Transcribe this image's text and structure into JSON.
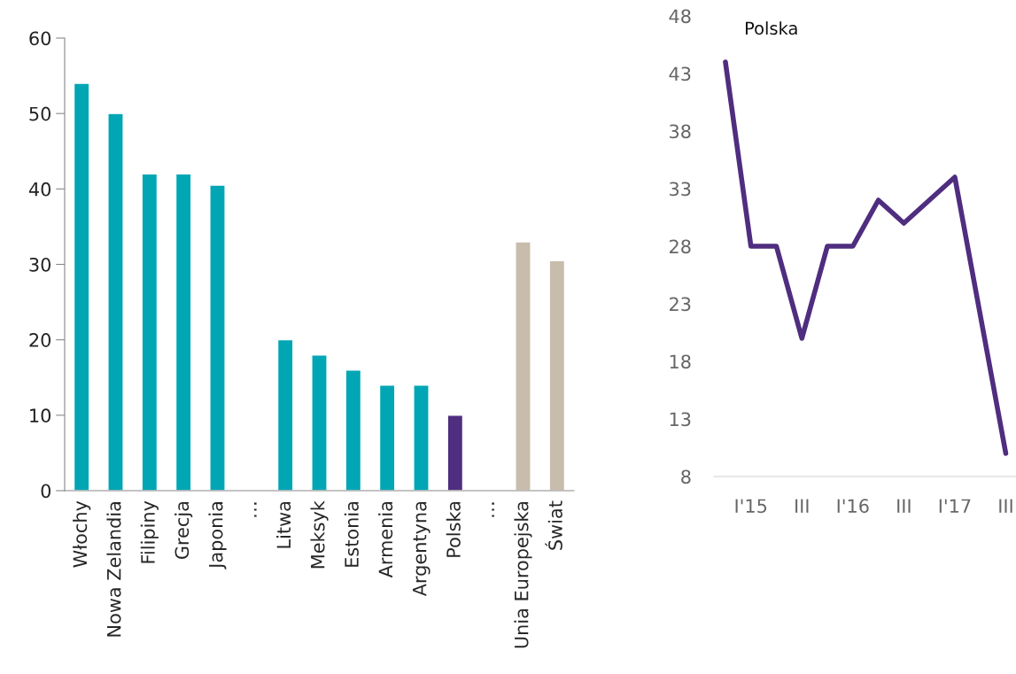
{
  "chart_data": [
    {
      "type": "bar",
      "categories": [
        "Włochy",
        "Nowa Zelandia",
        "Filipiny",
        "Grecja",
        "Japonia",
        "…",
        "Litwa",
        "Meksyk",
        "Estonia",
        "Armenia",
        "Argentyna",
        "Polska",
        "…",
        "Unia Europejska",
        "Świat"
      ],
      "values": [
        54,
        50,
        42,
        42,
        40.5,
        null,
        20,
        18,
        16,
        14,
        14,
        10,
        null,
        33,
        30.5
      ],
      "colors": [
        "#00a6b4",
        "#00a6b4",
        "#00a6b4",
        "#00a6b4",
        "#00a6b4",
        "#00a6b4",
        "#00a6b4",
        "#00a6b4",
        "#00a6b4",
        "#00a6b4",
        "#00a6b4",
        "#4f2d7f",
        "#c8bcac",
        "#c8bcac",
        "#c8bcac"
      ],
      "ylim": [
        0,
        60
      ],
      "yticks": [
        0,
        10,
        20,
        30,
        40,
        50,
        60
      ],
      "grid": false,
      "legend": false
    },
    {
      "type": "line",
      "categories": [
        null,
        "I'15",
        null,
        "III",
        null,
        "I'16",
        null,
        "III",
        null,
        "I'17",
        null,
        "III"
      ],
      "series": [
        {
          "name": "Polska",
          "color": "#4f2d7f",
          "values": [
            44,
            28,
            28,
            20,
            28,
            28,
            32,
            30,
            32,
            34,
            22,
            10
          ]
        }
      ],
      "ylim": [
        8,
        48
      ],
      "yticks": [
        8,
        13,
        18,
        23,
        28,
        33,
        38,
        43,
        48
      ],
      "grid": false,
      "legend": false,
      "marker": "none",
      "line_style": "solid"
    }
  ]
}
